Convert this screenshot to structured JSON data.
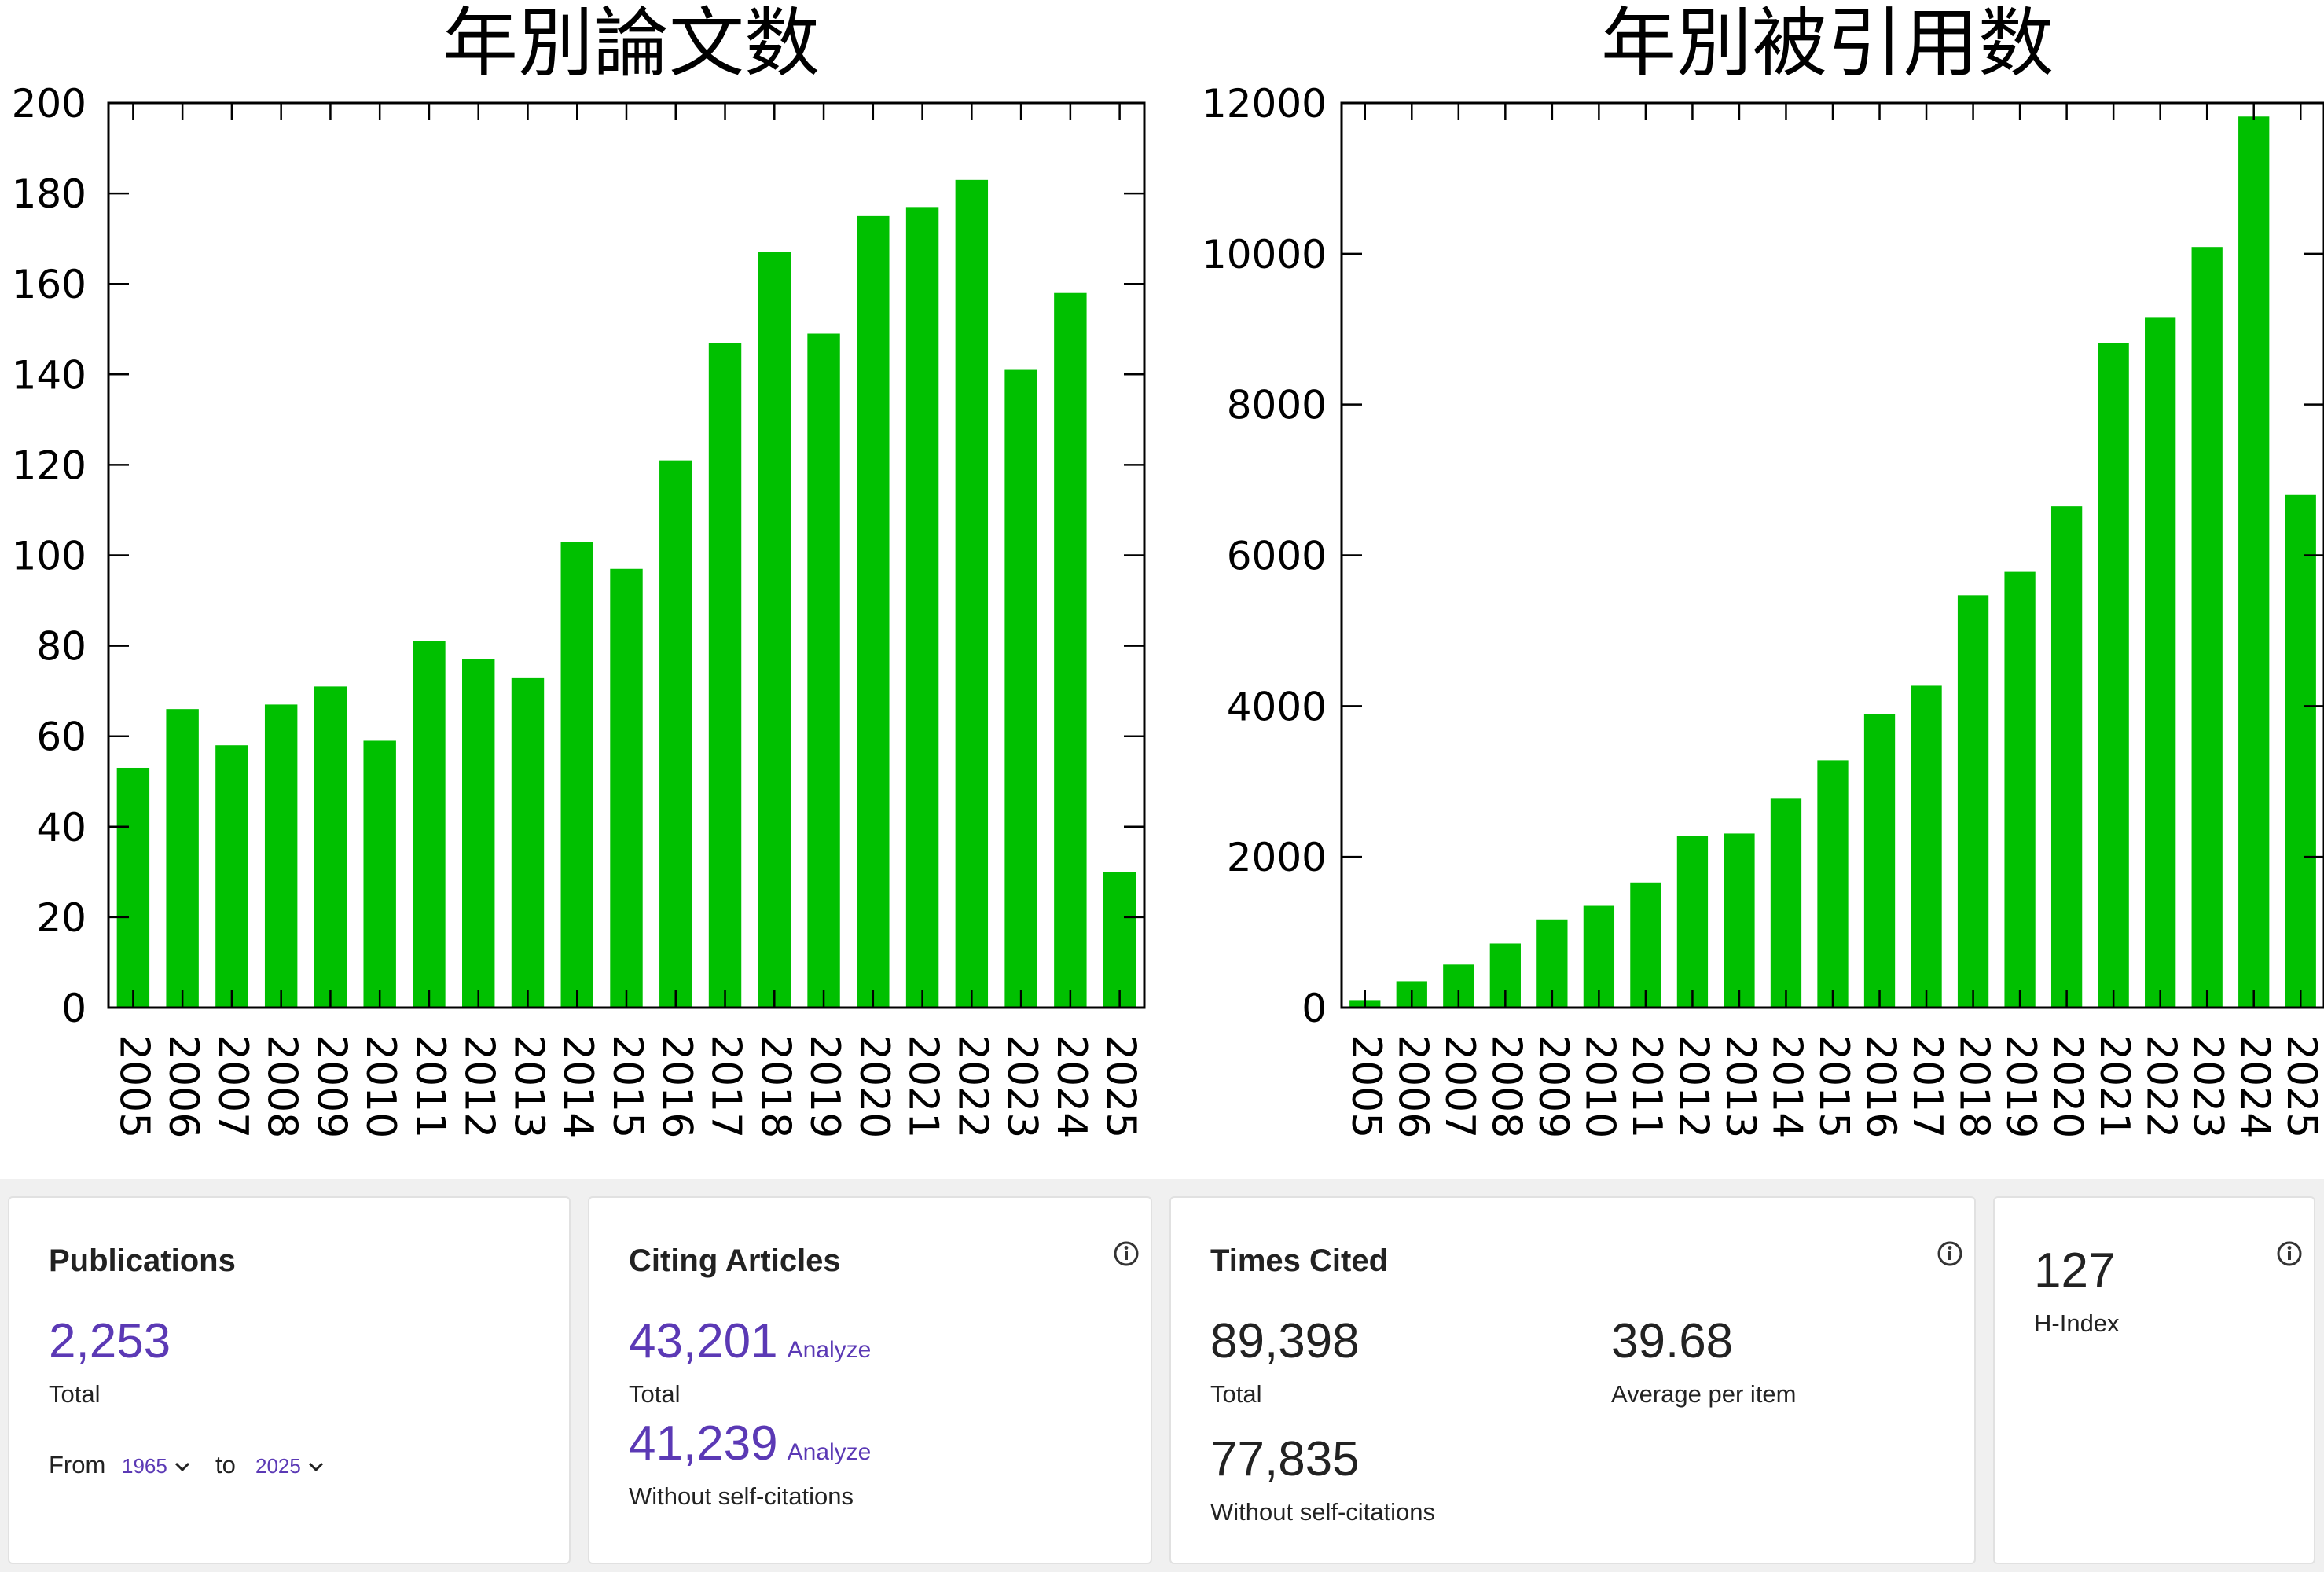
{
  "chart_data": [
    {
      "type": "bar",
      "title": "年別論文数",
      "categories": [
        "2005",
        "2006",
        "2007",
        "2008",
        "2009",
        "2010",
        "2011",
        "2012",
        "2013",
        "2014",
        "2015",
        "2016",
        "2017",
        "2018",
        "2019",
        "2020",
        "2021",
        "2022",
        "2023",
        "2024",
        "2025"
      ],
      "values": [
        53,
        66,
        58,
        67,
        71,
        59,
        81,
        77,
        73,
        103,
        97,
        121,
        147,
        167,
        149,
        175,
        177,
        183,
        141,
        158,
        30
      ],
      "ylim": [
        0,
        200
      ],
      "yticks": [
        0,
        20,
        40,
        60,
        80,
        100,
        120,
        140,
        160,
        180,
        200
      ],
      "bar_color": "#00c000"
    },
    {
      "type": "bar",
      "title": "年別被引用数",
      "categories": [
        "2005",
        "2006",
        "2007",
        "2008",
        "2009",
        "2010",
        "2011",
        "2012",
        "2013",
        "2014",
        "2015",
        "2016",
        "2017",
        "2018",
        "2019",
        "2020",
        "2021",
        "2022",
        "2023",
        "2024",
        "2025"
      ],
      "values": [
        100,
        350,
        570,
        850,
        1170,
        1350,
        1660,
        2280,
        2310,
        2780,
        3280,
        3890,
        4270,
        5470,
        5780,
        6650,
        8820,
        9160,
        10090,
        11820,
        6800
      ],
      "ylim": [
        0,
        12000
      ],
      "yticks": [
        0,
        2000,
        4000,
        6000,
        8000,
        10000,
        12000
      ],
      "bar_color": "#00c000"
    }
  ],
  "metrics": {
    "publications": {
      "title": "Publications",
      "value": "2,253",
      "value_label": "Total",
      "from_label": "From",
      "from_value": "1965",
      "to_label": "to",
      "to_value": "2025"
    },
    "citing": {
      "title": "Citing Articles",
      "total": "43,201",
      "total_label": "Total",
      "without": "41,239",
      "without_label": "Without self-citations",
      "analyze_label": "Analyze"
    },
    "times_cited": {
      "title": "Times Cited",
      "total": "89,398",
      "total_label": "Total",
      "average": "39.68",
      "average_label": "Average per item",
      "without": "77,835",
      "without_label": "Without self-citations"
    },
    "hindex": {
      "value": "127",
      "label": "H-Index"
    }
  },
  "icons": {
    "info": "info-icon",
    "chevron": "chevron-down-icon"
  },
  "colors": {
    "bar": "#00c000",
    "link": "#5b39b5",
    "band": "#f0f0f0"
  }
}
